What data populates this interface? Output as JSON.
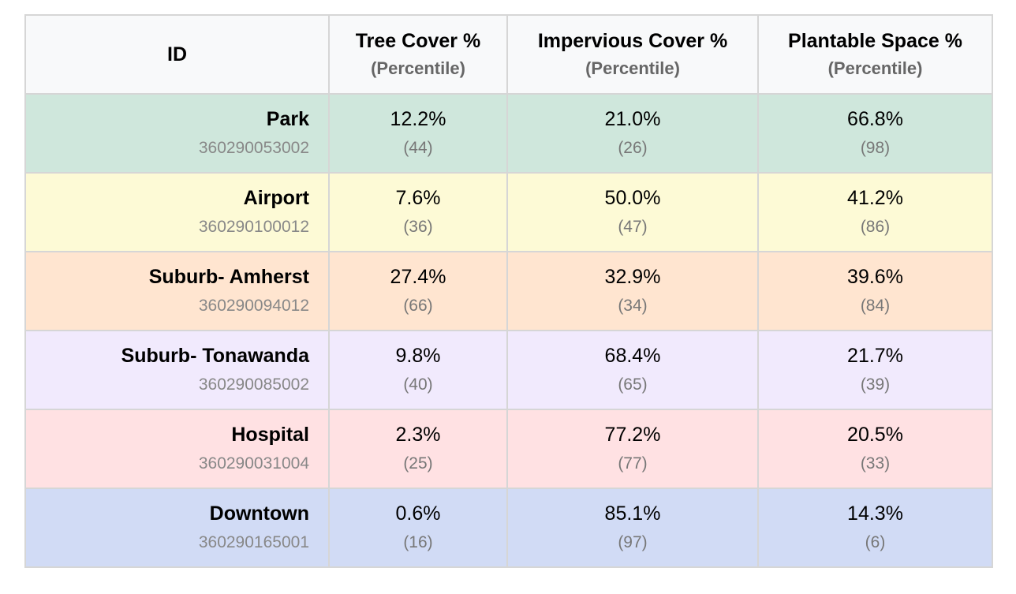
{
  "header": {
    "id_label": "ID",
    "columns": [
      {
        "title": "Tree Cover %",
        "subtitle": "(Percentile)"
      },
      {
        "title": "Impervious Cover %",
        "subtitle": "(Percentile)"
      },
      {
        "title": "Plantable Space %",
        "subtitle": "(Percentile)"
      }
    ]
  },
  "rows": [
    {
      "name": "Park",
      "id": "360290053002",
      "bg": "#cfe7dc",
      "cells": [
        {
          "value": "12.2%",
          "percentile": "(44)"
        },
        {
          "value": "21.0%",
          "percentile": "(26)"
        },
        {
          "value": "66.8%",
          "percentile": "(98)"
        }
      ]
    },
    {
      "name": "Airport",
      "id": "360290100012",
      "bg": "#fdfad6",
      "cells": [
        {
          "value": "7.6%",
          "percentile": "(36)"
        },
        {
          "value": "50.0%",
          "percentile": "(47)"
        },
        {
          "value": "41.2%",
          "percentile": "(86)"
        }
      ]
    },
    {
      "name": "Suburb- Amherst",
      "id": "360290094012",
      "bg": "#ffe5d0",
      "cells": [
        {
          "value": "27.4%",
          "percentile": "(66)"
        },
        {
          "value": "32.9%",
          "percentile": "(34)"
        },
        {
          "value": "39.6%",
          "percentile": "(84)"
        }
      ]
    },
    {
      "name": "Suburb- Tonawanda",
      "id": "360290085002",
      "bg": "#f1eafd",
      "cells": [
        {
          "value": "9.8%",
          "percentile": "(40)"
        },
        {
          "value": "68.4%",
          "percentile": "(65)"
        },
        {
          "value": "21.7%",
          "percentile": "(39)"
        }
      ]
    },
    {
      "name": "Hospital",
      "id": "360290031004",
      "bg": "#ffe1e3",
      "cells": [
        {
          "value": "2.3%",
          "percentile": "(25)"
        },
        {
          "value": "77.2%",
          "percentile": "(77)"
        },
        {
          "value": "20.5%",
          "percentile": "(33)"
        }
      ]
    },
    {
      "name": "Downtown",
      "id": "360290165001",
      "bg": "#d1dbf5",
      "cells": [
        {
          "value": "0.6%",
          "percentile": "(16)"
        },
        {
          "value": "85.1%",
          "percentile": "(97)"
        },
        {
          "value": "14.3%",
          "percentile": "(6)"
        }
      ]
    }
  ]
}
